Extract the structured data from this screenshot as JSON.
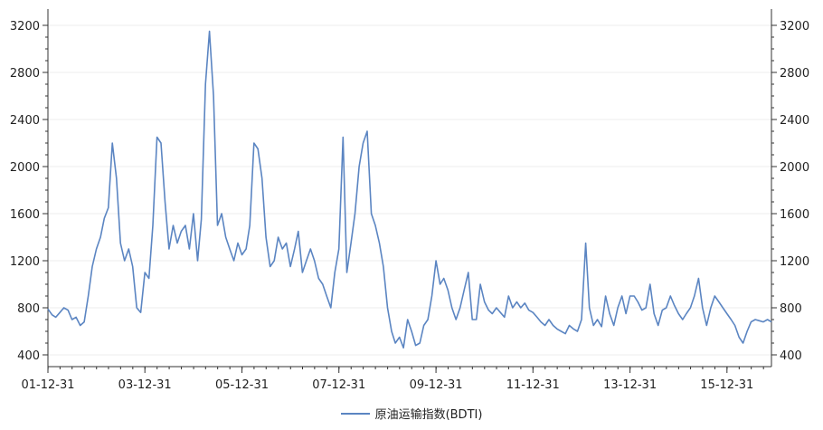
{
  "chart_data": {
    "type": "line",
    "title": "",
    "xlabel": "",
    "ylabel": "",
    "x_tick_labels": [
      "01-12-31",
      "03-12-31",
      "05-12-31",
      "07-12-31",
      "09-12-31",
      "11-12-31",
      "13-12-31",
      "15-12-31"
    ],
    "y_ticks": [
      400,
      800,
      1200,
      1600,
      2000,
      2400,
      2800,
      3200
    ],
    "ylim": [
      300,
      3300
    ],
    "xlim": [
      "2001-12-31",
      "2016-11-30"
    ],
    "grid": "horizontal",
    "secondary_y_axis": "mirrors left axis",
    "legend_position": "bottom-center",
    "series": [
      {
        "name": "原油运输指数(BDTI)",
        "color": "#5b85c2",
        "x": [
          "2001-12-31",
          "2002-01-31",
          "2002-02-28",
          "2002-03-31",
          "2002-04-30",
          "2002-05-31",
          "2002-06-30",
          "2002-07-31",
          "2002-08-31",
          "2002-09-30",
          "2002-10-31",
          "2002-11-30",
          "2002-12-31",
          "2003-01-31",
          "2003-02-28",
          "2003-03-31",
          "2003-04-30",
          "2003-05-31",
          "2003-06-30",
          "2003-07-31",
          "2003-08-31",
          "2003-09-30",
          "2003-10-31",
          "2003-11-30",
          "2003-12-31",
          "2004-01-31",
          "2004-02-29",
          "2004-03-31",
          "2004-04-30",
          "2004-05-31",
          "2004-06-30",
          "2004-07-31",
          "2004-08-31",
          "2004-09-30",
          "2004-10-31",
          "2004-11-30",
          "2004-12-31",
          "2005-01-31",
          "2005-02-28",
          "2005-03-31",
          "2005-04-30",
          "2005-05-31",
          "2005-06-30",
          "2005-07-31",
          "2005-08-31",
          "2005-09-30",
          "2005-10-31",
          "2005-11-30",
          "2005-12-31",
          "2006-01-31",
          "2006-02-28",
          "2006-03-31",
          "2006-04-30",
          "2006-05-31",
          "2006-06-30",
          "2006-07-31",
          "2006-08-31",
          "2006-09-30",
          "2006-10-31",
          "2006-11-30",
          "2006-12-31",
          "2007-01-31",
          "2007-02-28",
          "2007-03-31",
          "2007-04-30",
          "2007-05-31",
          "2007-06-30",
          "2007-07-31",
          "2007-08-31",
          "2007-09-30",
          "2007-10-31",
          "2007-11-30",
          "2007-12-31",
          "2008-01-31",
          "2008-02-29",
          "2008-03-31",
          "2008-04-30",
          "2008-05-31",
          "2008-06-30",
          "2008-07-31",
          "2008-08-31",
          "2008-09-30",
          "2008-10-31",
          "2008-11-30",
          "2008-12-31",
          "2009-01-31",
          "2009-02-28",
          "2009-03-31",
          "2009-04-30",
          "2009-05-31",
          "2009-06-30",
          "2009-07-31",
          "2009-08-31",
          "2009-09-30",
          "2009-10-31",
          "2009-11-30",
          "2009-12-31",
          "2010-01-31",
          "2010-02-28",
          "2010-03-31",
          "2010-04-30",
          "2010-05-31",
          "2010-06-30",
          "2010-07-31",
          "2010-08-31",
          "2010-09-30",
          "2010-10-31",
          "2010-11-30",
          "2010-12-31",
          "2011-01-31",
          "2011-02-28",
          "2011-03-31",
          "2011-04-30",
          "2011-05-31",
          "2011-06-30",
          "2011-07-31",
          "2011-08-31",
          "2011-09-30",
          "2011-10-31",
          "2011-11-30",
          "2011-12-31",
          "2012-01-31",
          "2012-02-29",
          "2012-03-31",
          "2012-04-30",
          "2012-05-31",
          "2012-06-30",
          "2012-07-31",
          "2012-08-31",
          "2012-09-30",
          "2012-10-31",
          "2012-11-30",
          "2012-12-31",
          "2013-01-31",
          "2013-02-28",
          "2013-03-31",
          "2013-04-30",
          "2013-05-31",
          "2013-06-30",
          "2013-07-31",
          "2013-08-31",
          "2013-09-30",
          "2013-10-31",
          "2013-11-30",
          "2013-12-31",
          "2014-01-31",
          "2014-02-28",
          "2014-03-31",
          "2014-04-30",
          "2014-05-31",
          "2014-06-30",
          "2014-07-31",
          "2014-08-31",
          "2014-09-30",
          "2014-10-31",
          "2014-11-30",
          "2014-12-31",
          "2015-01-31",
          "2015-02-28",
          "2015-03-31",
          "2015-04-30",
          "2015-05-31",
          "2015-06-30",
          "2015-07-31",
          "2015-08-31",
          "2015-09-30",
          "2015-10-31",
          "2015-11-30",
          "2015-12-31",
          "2016-01-31",
          "2016-02-29",
          "2016-03-31",
          "2016-04-30",
          "2016-05-31",
          "2016-06-30",
          "2016-07-31",
          "2016-08-31",
          "2016-09-30",
          "2016-10-31",
          "2016-11-30"
        ],
        "values": [
          790,
          740,
          720,
          760,
          800,
          780,
          700,
          720,
          650,
          680,
          900,
          1150,
          1300,
          1400,
          1560,
          1650,
          2200,
          1900,
          1350,
          1200,
          1300,
          1150,
          800,
          760,
          1100,
          1050,
          1500,
          2250,
          2200,
          1700,
          1300,
          1500,
          1350,
          1450,
          1500,
          1300,
          1600,
          1200,
          1550,
          2700,
          3150,
          2600,
          1500,
          1600,
          1400,
          1300,
          1200,
          1350,
          1250,
          1300,
          1500,
          2200,
          2150,
          1900,
          1400,
          1150,
          1200,
          1400,
          1300,
          1350,
          1150,
          1300,
          1450,
          1100,
          1200,
          1300,
          1200,
          1050,
          1000,
          900,
          800,
          1100,
          1300,
          2250,
          1100,
          1350,
          1600,
          2000,
          2200,
          2300,
          1600,
          1500,
          1350,
          1150,
          800,
          600,
          500,
          550,
          460,
          700,
          600,
          480,
          500,
          650,
          700,
          900,
          1200,
          1000,
          1050,
          950,
          800,
          700,
          800,
          950,
          1100,
          700,
          700,
          1000,
          850,
          780,
          750,
          800,
          760,
          720,
          900,
          800,
          850,
          800,
          840,
          780,
          760,
          720,
          680,
          650,
          700,
          650,
          620,
          600,
          580,
          650,
          620,
          600,
          700,
          1350,
          800,
          650,
          700,
          640,
          900,
          750,
          650,
          800,
          900,
          750,
          900,
          900,
          850,
          780,
          800,
          1000,
          750,
          650,
          780,
          800,
          900,
          820,
          750,
          700,
          750,
          800,
          900,
          1050,
          800,
          650,
          800,
          900,
          850,
          800,
          750,
          700,
          650,
          550,
          500,
          600,
          680,
          700,
          690,
          680,
          700,
          680
        ]
      }
    ]
  }
}
